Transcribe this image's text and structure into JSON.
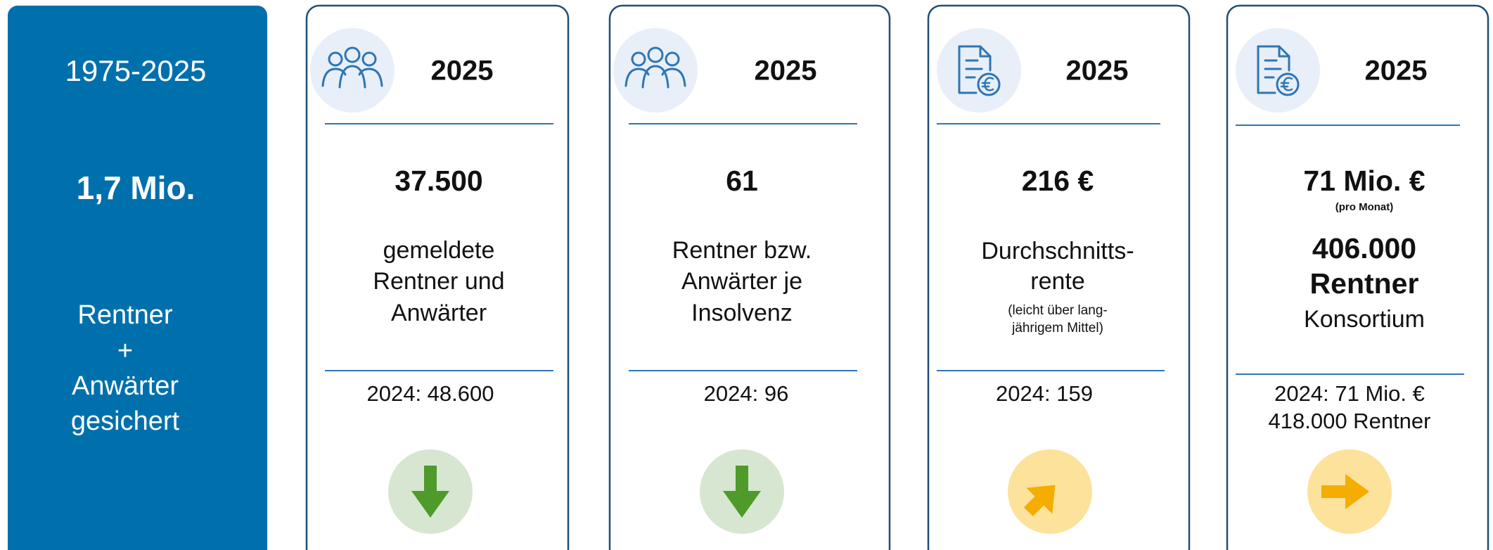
{
  "panel": {
    "period": "1975-2025",
    "value": "1,7 Mio.",
    "label": [
      "Rentner",
      "+",
      "Anwärter",
      "gesichert"
    ]
  },
  "cards": [
    {
      "year": "2025",
      "value": "37.500",
      "description": [
        "gemeldete",
        "Rentner und",
        "Anwärter"
      ],
      "previous": [
        "2024: 48.600"
      ]
    },
    {
      "year": "2025",
      "value": "61",
      "description": [
        "Rentner bzw.",
        "Anwärter je",
        "Insolvenz"
      ],
      "previous": [
        "2024: 96"
      ]
    },
    {
      "year": "2025",
      "value": "216 €",
      "description": [
        "Durchschnitts-",
        "rente"
      ],
      "note": [
        "(leicht über lang-",
        "jährigem Mittel)"
      ],
      "previous": [
        "2024: 159"
      ]
    },
    {
      "year": "2025",
      "value": "71 Mio. €",
      "note": [
        "(pro Monat)"
      ],
      "description": [
        "406.000",
        "Rentner",
        "Konsortium"
      ],
      "previous": [
        "2024: 71 Mio. €",
        "418.000 Rentner"
      ]
    }
  ]
}
